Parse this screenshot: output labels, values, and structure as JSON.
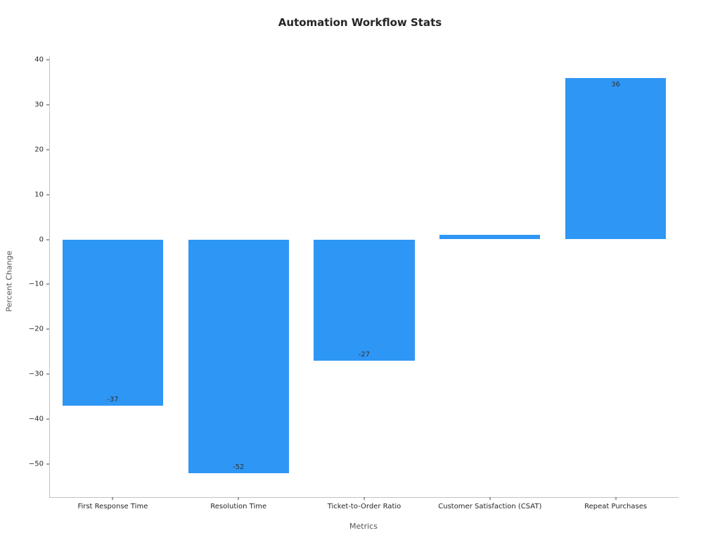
{
  "chart_data": {
    "type": "bar",
    "title": "Automation Workflow Stats",
    "xlabel": "Metrics",
    "ylabel": "Percent Change",
    "categories": [
      "First Response Time",
      "Resolution Time",
      "Ticket-to-Order Ratio",
      "Customer Satisfaction (CSAT)",
      "Repeat Purchases"
    ],
    "values": [
      -37,
      -52,
      -27,
      1,
      36
    ],
    "bar_labels": [
      "-37",
      "-52",
      "-27",
      "",
      "36"
    ],
    "bar_color": "#2E96F5",
    "ylim": [
      -57.4,
      40.8
    ],
    "yticks": [
      -50,
      -40,
      -30,
      -20,
      -10,
      0,
      10,
      20,
      30,
      40
    ],
    "grid": false,
    "legend": null
  }
}
